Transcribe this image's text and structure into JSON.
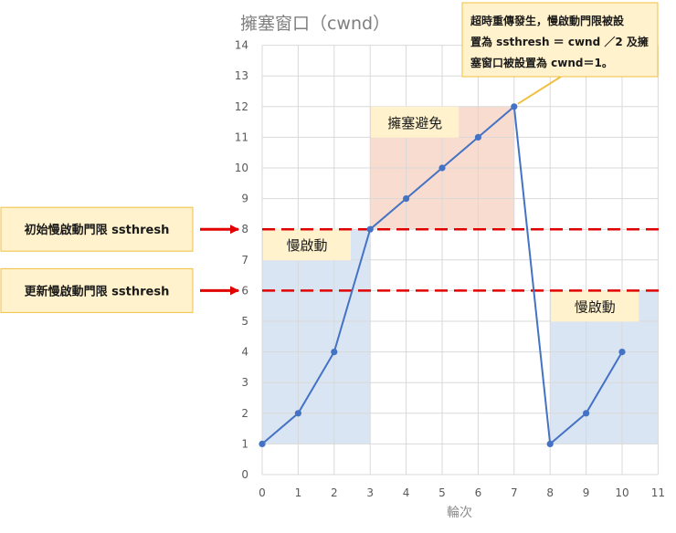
{
  "chart_data": {
    "type": "line",
    "title": "擁塞窗口（cwnd）",
    "xlabel": "輪次",
    "ylabel": "",
    "xlim": [
      0,
      11
    ],
    "ylim": [
      0,
      14
    ],
    "x_ticks": [
      0,
      1,
      2,
      3,
      4,
      5,
      6,
      7,
      8,
      9,
      10,
      11
    ],
    "y_ticks": [
      0,
      1,
      2,
      3,
      4,
      5,
      6,
      7,
      8,
      9,
      10,
      11,
      12,
      13,
      14
    ],
    "grid": true,
    "series": [
      {
        "x": [
          0,
          1,
          2,
          3,
          4,
          5,
          6,
          7,
          8,
          9,
          10
        ],
        "y": [
          1,
          2,
          4,
          8,
          9,
          10,
          11,
          12,
          1,
          2,
          4
        ]
      }
    ],
    "reference_lines": [
      {
        "y": 8,
        "label": "初始慢啟動門限 ssthresh"
      },
      {
        "y": 6,
        "label": "更新慢啟動門限 ssthresh"
      }
    ],
    "phases": [
      {
        "label": "慢啟動",
        "x_range": [
          0,
          3
        ],
        "y_range": [
          1,
          8
        ],
        "color": "#dae5f3"
      },
      {
        "label": "擁塞避免",
        "x_range": [
          3,
          7
        ],
        "y_range": [
          8,
          12
        ],
        "color": "#f8dccf"
      },
      {
        "label": "慢啟動",
        "x_range": [
          8,
          11
        ],
        "y_range": [
          1,
          6
        ],
        "color": "#dae5f3"
      }
    ],
    "annotation": {
      "lines": [
        "超時重傳發生，慢啟動門限被設",
        "置為 ssthresh ＝ cwnd ／2 及擁",
        "塞窗口被設置為 cwnd＝1。"
      ],
      "points_to": {
        "x": 7,
        "y": 12
      }
    },
    "colors": {
      "line": "#4472c4",
      "threshold": "#e00000",
      "label_box": "#fff2cc",
      "label_border": "#f0c040",
      "axis_text": "#595959",
      "grid": "#d9d9d9"
    }
  }
}
